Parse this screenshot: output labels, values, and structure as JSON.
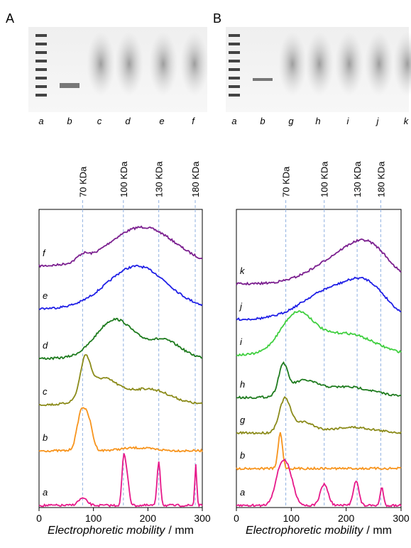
{
  "panels": [
    {
      "letter": "A",
      "lanes": [
        "a",
        "b",
        "c",
        "d",
        "e",
        "f"
      ],
      "markers": [
        {
          "label": "70 KDa",
          "position": 80
        },
        {
          "label": "100 KDa",
          "position": 155
        },
        {
          "label": "130 KDa",
          "position": 220
        },
        {
          "label": "180 KDa",
          "position": 287
        }
      ],
      "trace_labels": [
        "f",
        "e",
        "d",
        "c",
        "b",
        "a"
      ],
      "xlim": [
        0,
        300
      ],
      "xticks": [
        0,
        100,
        200,
        300
      ],
      "xlabel": "Electrophoretic mobility",
      "xunit": "/ mm"
    },
    {
      "letter": "B",
      "lanes": [
        "a",
        "b",
        "g",
        "h",
        "i",
        "j",
        "k"
      ],
      "markers": [
        {
          "label": "70 KDa",
          "position": 90
        },
        {
          "label": "100 KDa",
          "position": 160
        },
        {
          "label": "130 KDa",
          "position": 220
        },
        {
          "label": "180 KDa",
          "position": 263
        }
      ],
      "trace_labels": [
        "k",
        "j",
        "i",
        "h",
        "g",
        "b",
        "a"
      ],
      "xlim": [
        0,
        300
      ],
      "xticks": [
        0,
        100,
        200,
        300
      ],
      "xlabel": "Electrophoretic mobility",
      "xunit": "/ mm"
    }
  ]
}
